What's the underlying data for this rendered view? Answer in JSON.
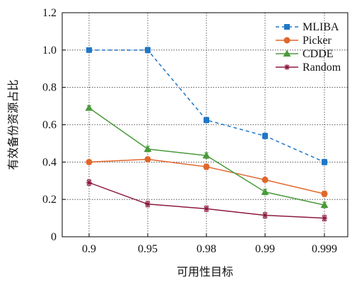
{
  "chart_data": {
    "type": "line",
    "xlabel": "可用性目标",
    "ylabel": "有效备份资源占比",
    "categories": [
      "0.9",
      "0.95",
      "0.98",
      "0.99",
      "0.999"
    ],
    "ylim": [
      0,
      1.2
    ],
    "yticks": [
      "0",
      "0.2",
      "0.4",
      "0.6",
      "0.8",
      "1.0",
      "1.2"
    ],
    "grid": "dotted",
    "legend_position": "top-right",
    "series": [
      {
        "name": "MLIBA",
        "values": [
          1.0,
          1.0,
          0.625,
          0.54,
          0.4
        ],
        "errors": [
          0.012,
          0.015,
          0.015,
          0.015,
          0.015
        ],
        "color": "#1f77c7",
        "marker": "square",
        "dash": true
      },
      {
        "name": "Picker",
        "values": [
          0.4,
          0.415,
          0.375,
          0.305,
          0.23
        ],
        "errors": [
          0.012,
          0.012,
          0.015,
          0.012,
          0.015
        ],
        "color": "#e0662a",
        "marker": "circle",
        "dash": false
      },
      {
        "name": "CDDE",
        "values": [
          0.69,
          0.47,
          0.435,
          0.24,
          0.17
        ],
        "errors": [
          0.012,
          0.015,
          0.015,
          0.015,
          0.015
        ],
        "color": "#4a9a3a",
        "marker": "triangle",
        "dash": false
      },
      {
        "name": "Random",
        "values": [
          0.29,
          0.175,
          0.15,
          0.115,
          0.1
        ],
        "errors": [
          0.015,
          0.015,
          0.015,
          0.015,
          0.015
        ],
        "color": "#8b1a3c",
        "marker": "star",
        "dash": false
      }
    ]
  }
}
